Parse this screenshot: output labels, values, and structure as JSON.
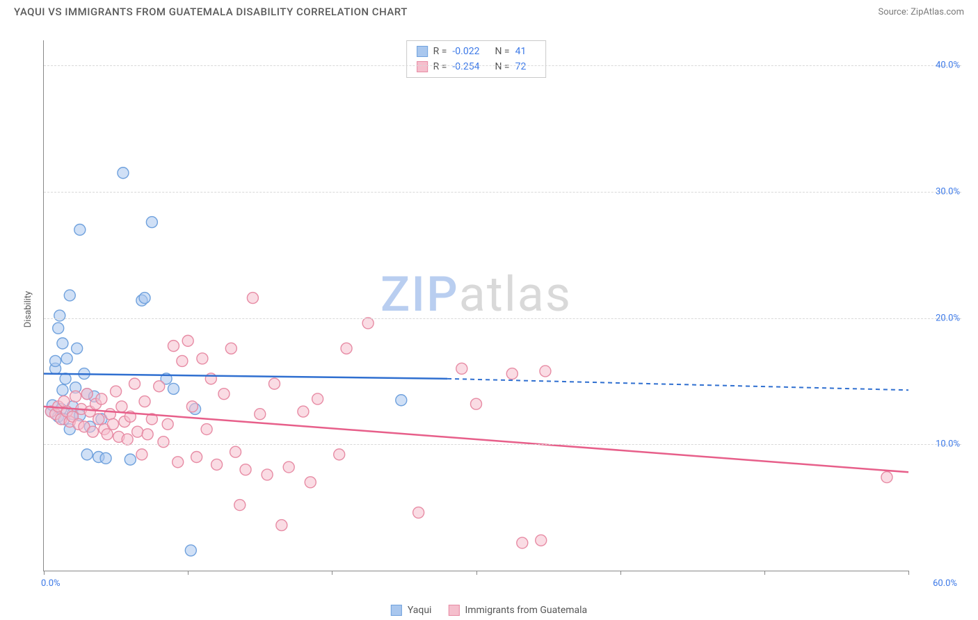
{
  "header": {
    "title": "YAQUI VS IMMIGRANTS FROM GUATEMALA DISABILITY CORRELATION CHART",
    "source": "Source: ZipAtlas.com"
  },
  "ylabel": "Disability",
  "watermark": {
    "zip": "ZIP",
    "atlas": "atlas",
    "zip_color": "#b9cef0",
    "atlas_color": "#d9d9d9"
  },
  "xlim": [
    0,
    60
  ],
  "ylim": [
    0,
    42
  ],
  "x_ticks": [
    0,
    10,
    20,
    30,
    40,
    50,
    60
  ],
  "x_min_label": "0.0%",
  "x_max_label": "60.0%",
  "y_gridlines": [
    10,
    20,
    30,
    40
  ],
  "y_labels": [
    "10.0%",
    "20.0%",
    "30.0%",
    "40.0%"
  ],
  "y_label_color": "#3b78e7",
  "x_label_color": "#3b78e7",
  "grid_color": "#d8d8d8",
  "axis_color": "#888888",
  "background_color": "#ffffff",
  "marker_radius": 8,
  "marker_stroke_width": 1.4,
  "series": [
    {
      "name": "Yaqui",
      "fill": "#a9c7ee",
      "stroke": "#6fa1dd",
      "fill_opacity": 0.55,
      "line_color": "#2f6fd0",
      "stats": {
        "R": "-0.022",
        "N": "41"
      },
      "trend": {
        "x1": 0,
        "y1": 15.6,
        "x_solid_end": 28,
        "y_solid_end": 15.2,
        "x2": 60,
        "y2": 14.3
      },
      "points": [
        [
          0.5,
          12.6
        ],
        [
          0.6,
          13.1
        ],
        [
          0.8,
          16.0
        ],
        [
          0.8,
          16.6
        ],
        [
          1.0,
          12.2
        ],
        [
          1.0,
          19.2
        ],
        [
          1.1,
          20.2
        ],
        [
          1.2,
          12.8
        ],
        [
          1.3,
          14.3
        ],
        [
          1.3,
          18.0
        ],
        [
          1.4,
          12.0
        ],
        [
          1.5,
          15.2
        ],
        [
          1.6,
          16.8
        ],
        [
          1.8,
          11.2
        ],
        [
          1.8,
          21.8
        ],
        [
          2.0,
          13.0
        ],
        [
          2.0,
          12.4
        ],
        [
          2.2,
          14.5
        ],
        [
          2.3,
          17.6
        ],
        [
          2.5,
          12.3
        ],
        [
          2.5,
          27.0
        ],
        [
          2.8,
          15.6
        ],
        [
          3.0,
          14.0
        ],
        [
          3.0,
          9.2
        ],
        [
          3.2,
          11.4
        ],
        [
          3.5,
          13.8
        ],
        [
          3.8,
          9.0
        ],
        [
          4.0,
          12.0
        ],
        [
          4.3,
          8.9
        ],
        [
          5.5,
          31.5
        ],
        [
          6.0,
          8.8
        ],
        [
          6.8,
          21.4
        ],
        [
          7.0,
          21.6
        ],
        [
          7.5,
          27.6
        ],
        [
          8.5,
          15.2
        ],
        [
          9.0,
          14.4
        ],
        [
          10.2,
          1.6
        ],
        [
          10.5,
          12.8
        ],
        [
          24.8,
          13.5
        ]
      ]
    },
    {
      "name": "Immigrants from Guatemala",
      "fill": "#f5bfcd",
      "stroke": "#e78ba4",
      "fill_opacity": 0.55,
      "line_color": "#e75f8a",
      "stats": {
        "R": "-0.254",
        "N": "72"
      },
      "trend": {
        "x1": 0,
        "y1": 13.0,
        "x_solid_end": 60,
        "y_solid_end": 7.8,
        "x2": 60,
        "y2": 7.8
      },
      "points": [
        [
          0.5,
          12.6
        ],
        [
          0.8,
          12.4
        ],
        [
          1.0,
          13.0
        ],
        [
          1.2,
          12.0
        ],
        [
          1.4,
          13.4
        ],
        [
          1.6,
          12.6
        ],
        [
          1.8,
          11.8
        ],
        [
          2.0,
          12.2
        ],
        [
          2.2,
          13.8
        ],
        [
          2.4,
          11.6
        ],
        [
          2.6,
          12.8
        ],
        [
          2.8,
          11.4
        ],
        [
          3.0,
          14.0
        ],
        [
          3.2,
          12.6
        ],
        [
          3.4,
          11.0
        ],
        [
          3.6,
          13.2
        ],
        [
          3.8,
          12.0
        ],
        [
          4.0,
          13.6
        ],
        [
          4.2,
          11.2
        ],
        [
          4.4,
          10.8
        ],
        [
          4.6,
          12.4
        ],
        [
          4.8,
          11.6
        ],
        [
          5.0,
          14.2
        ],
        [
          5.2,
          10.6
        ],
        [
          5.4,
          13.0
        ],
        [
          5.6,
          11.8
        ],
        [
          5.8,
          10.4
        ],
        [
          6.0,
          12.2
        ],
        [
          6.3,
          14.8
        ],
        [
          6.5,
          11.0
        ],
        [
          6.8,
          9.2
        ],
        [
          7.0,
          13.4
        ],
        [
          7.2,
          10.8
        ],
        [
          7.5,
          12.0
        ],
        [
          8.0,
          14.6
        ],
        [
          8.3,
          10.2
        ],
        [
          8.6,
          11.6
        ],
        [
          9.0,
          17.8
        ],
        [
          9.3,
          8.6
        ],
        [
          9.6,
          16.6
        ],
        [
          10.0,
          18.2
        ],
        [
          10.3,
          13.0
        ],
        [
          10.6,
          9.0
        ],
        [
          11.0,
          16.8
        ],
        [
          11.3,
          11.2
        ],
        [
          11.6,
          15.2
        ],
        [
          12.0,
          8.4
        ],
        [
          12.5,
          14.0
        ],
        [
          13.0,
          17.6
        ],
        [
          13.3,
          9.4
        ],
        [
          13.6,
          5.2
        ],
        [
          14.0,
          8.0
        ],
        [
          14.5,
          21.6
        ],
        [
          15.0,
          12.4
        ],
        [
          15.5,
          7.6
        ],
        [
          16.0,
          14.8
        ],
        [
          16.5,
          3.6
        ],
        [
          17.0,
          8.2
        ],
        [
          18.0,
          12.6
        ],
        [
          18.5,
          7.0
        ],
        [
          19.0,
          13.6
        ],
        [
          20.5,
          9.2
        ],
        [
          21.0,
          17.6
        ],
        [
          22.5,
          19.6
        ],
        [
          26.0,
          4.6
        ],
        [
          29.0,
          16.0
        ],
        [
          30.0,
          13.2
        ],
        [
          32.5,
          15.6
        ],
        [
          33.2,
          2.2
        ],
        [
          34.5,
          2.4
        ],
        [
          34.8,
          15.8
        ],
        [
          58.5,
          7.4
        ]
      ]
    }
  ],
  "stats_box": {
    "rows": [
      {
        "swatch_fill": "#a9c7ee",
        "swatch_stroke": "#6fa1dd",
        "r_label": "R =",
        "r_val": "-0.022",
        "n_label": "N =",
        "n_val": "41"
      },
      {
        "swatch_fill": "#f5bfcd",
        "swatch_stroke": "#e78ba4",
        "r_label": "R =",
        "r_val": "-0.254",
        "n_label": "N =",
        "n_val": "72"
      }
    ]
  },
  "legend": {
    "items": [
      {
        "swatch_fill": "#a9c7ee",
        "swatch_stroke": "#6fa1dd",
        "label": "Yaqui"
      },
      {
        "swatch_fill": "#f5bfcd",
        "swatch_stroke": "#e78ba4",
        "label": "Immigrants from Guatemala"
      }
    ]
  }
}
